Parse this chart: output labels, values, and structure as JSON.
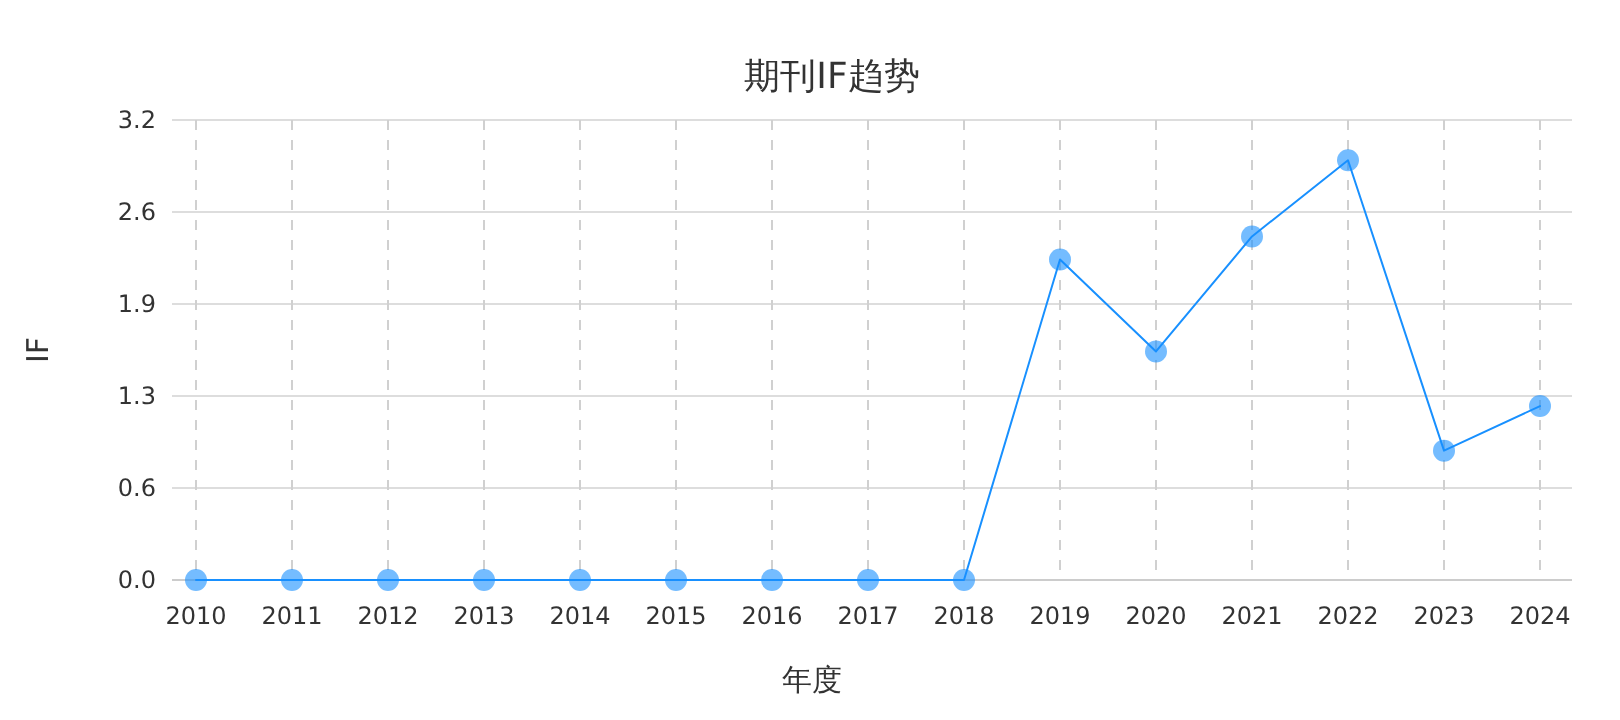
{
  "chart_data": {
    "type": "line",
    "title": "期刊IF趋势",
    "xlabel": "年度",
    "ylabel": "IF",
    "categories": [
      "2010",
      "2011",
      "2012",
      "2013",
      "2014",
      "2015",
      "2016",
      "2017",
      "2018",
      "2019",
      "2020",
      "2021",
      "2022",
      "2023",
      "2024"
    ],
    "series": [
      {
        "color": "#1890ff",
        "values": [
          0,
          0,
          0,
          0,
          0,
          0,
          0,
          0,
          0,
          2.23,
          1.59,
          2.39,
          2.92,
          0.9,
          1.21
        ]
      }
    ],
    "ylim": [
      0,
      3.2
    ],
    "yticks": [
      {
        "value": 0,
        "label": "0.0"
      },
      {
        "value": 0.64,
        "label": "0.6"
      },
      {
        "value": 1.28,
        "label": "1.3"
      },
      {
        "value": 1.92,
        "label": "1.9"
      },
      {
        "value": 2.56,
        "label": "2.6"
      },
      {
        "value": 3.2,
        "label": "3.2"
      }
    ],
    "grid": true,
    "marker": "circle",
    "line_style": "solid"
  }
}
